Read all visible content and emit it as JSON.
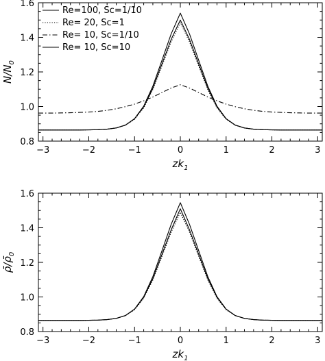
{
  "chart_data": [
    {
      "type": "line",
      "xlabel": "zk",
      "xlabel_sub": "1",
      "ylabel": "N/N",
      "ylabel_sub": "0",
      "xlim": [
        -3.1,
        3.1
      ],
      "ylim": [
        0.8,
        1.6
      ],
      "xticks": [
        -3,
        -2,
        -1,
        0,
        1,
        2,
        3
      ],
      "xtick_labels": [
        "−3",
        "−2",
        "−1",
        "0",
        "1",
        "2",
        "3"
      ],
      "yticks": [
        0.8,
        1.0,
        1.2,
        1.4,
        1.6
      ],
      "ytick_labels": [
        "0.8",
        "1.0",
        "1.2",
        "1.4",
        "1.6"
      ],
      "legend_position": "top-left",
      "x": [
        -3.1,
        -3,
        -2.8,
        -2.6,
        -2.4,
        -2.2,
        -2,
        -1.8,
        -1.6,
        -1.4,
        -1.2,
        -1,
        -0.8,
        -0.6,
        -0.4,
        -0.2,
        0,
        0.2,
        0.4,
        0.6,
        0.8,
        1,
        1.2,
        1.4,
        1.6,
        1.8,
        2,
        2.2,
        2.4,
        2.6,
        2.8,
        3,
        3.1
      ],
      "series": [
        {
          "name": "Re=100, Sc=1/10",
          "dash": "solid",
          "values": [
            0.864,
            0.864,
            0.864,
            0.864,
            0.864,
            0.864,
            0.865,
            0.866,
            0.869,
            0.876,
            0.893,
            0.93,
            1.002,
            1.118,
            1.268,
            1.42,
            1.54,
            1.42,
            1.268,
            1.118,
            1.002,
            0.93,
            0.893,
            0.876,
            0.869,
            0.866,
            0.865,
            0.864,
            0.864,
            0.864,
            0.864,
            0.864,
            0.864
          ]
        },
        {
          "name": "Re= 20, Sc=1",
          "dash": "dotted",
          "values": [
            0.864,
            0.864,
            0.864,
            0.864,
            0.864,
            0.864,
            0.865,
            0.866,
            0.869,
            0.876,
            0.892,
            0.926,
            0.992,
            1.098,
            1.235,
            1.374,
            1.484,
            1.374,
            1.235,
            1.098,
            0.992,
            0.926,
            0.892,
            0.876,
            0.869,
            0.866,
            0.865,
            0.864,
            0.864,
            0.864,
            0.864,
            0.864,
            0.864
          ]
        },
        {
          "name": "Re= 10, Sc=1/10",
          "dash": "dashdot",
          "values": [
            0.962,
            0.962,
            0.962,
            0.963,
            0.964,
            0.966,
            0.968,
            0.972,
            0.978,
            0.987,
            0.999,
            1.014,
            1.033,
            1.055,
            1.081,
            1.107,
            1.126,
            1.107,
            1.081,
            1.055,
            1.033,
            1.014,
            0.999,
            0.987,
            0.978,
            0.972,
            0.968,
            0.966,
            0.964,
            0.963,
            0.962,
            0.962,
            0.962
          ]
        },
        {
          "name": "Re= 10, Sc=10",
          "dash": "solid",
          "values": [
            0.864,
            0.864,
            0.864,
            0.864,
            0.864,
            0.864,
            0.865,
            0.866,
            0.869,
            0.876,
            0.892,
            0.929,
            0.998,
            1.106,
            1.247,
            1.388,
            1.5,
            1.388,
            1.247,
            1.106,
            0.998,
            0.929,
            0.892,
            0.876,
            0.869,
            0.866,
            0.865,
            0.864,
            0.864,
            0.864,
            0.864,
            0.864,
            0.864
          ]
        }
      ]
    },
    {
      "type": "line",
      "xlabel": "zk",
      "xlabel_sub": "1",
      "ylabel": "ρ̄/ρ̄",
      "ylabel_sub": "0",
      "xlim": [
        -3.1,
        3.1
      ],
      "ylim": [
        0.8,
        1.6
      ],
      "xticks": [
        -3,
        -2,
        -1,
        0,
        1,
        2,
        3
      ],
      "xtick_labels": [
        "−3",
        "−2",
        "−1",
        "0",
        "1",
        "2",
        "3"
      ],
      "yticks": [
        0.8,
        1.0,
        1.2,
        1.4,
        1.6
      ],
      "ytick_labels": [
        "0.8",
        "1.0",
        "1.2",
        "1.4",
        "1.6"
      ],
      "x": [
        -3.1,
        -3,
        -2.8,
        -2.6,
        -2.4,
        -2.2,
        -2,
        -1.8,
        -1.6,
        -1.4,
        -1.2,
        -1,
        -0.8,
        -0.6,
        -0.4,
        -0.2,
        0,
        0.2,
        0.4,
        0.6,
        0.8,
        1,
        1.2,
        1.4,
        1.6,
        1.8,
        2,
        2.2,
        2.4,
        2.6,
        2.8,
        3,
        3.1
      ],
      "series": [
        {
          "dash": "solid",
          "values": [
            0.864,
            0.864,
            0.864,
            0.864,
            0.864,
            0.864,
            0.865,
            0.866,
            0.869,
            0.876,
            0.893,
            0.93,
            1.002,
            1.118,
            1.268,
            1.42,
            1.545,
            1.42,
            1.268,
            1.118,
            1.002,
            0.93,
            0.893,
            0.876,
            0.869,
            0.866,
            0.865,
            0.864,
            0.864,
            0.864,
            0.864,
            0.864,
            0.864
          ]
        },
        {
          "dash": "dotted",
          "values": [
            0.864,
            0.864,
            0.864,
            0.864,
            0.864,
            0.864,
            0.865,
            0.866,
            0.869,
            0.876,
            0.892,
            0.926,
            0.992,
            1.098,
            1.235,
            1.374,
            1.49,
            1.374,
            1.235,
            1.098,
            0.992,
            0.926,
            0.892,
            0.876,
            0.869,
            0.866,
            0.865,
            0.864,
            0.864,
            0.864,
            0.864,
            0.864,
            0.864
          ]
        },
        {
          "dash": "solid",
          "values": [
            0.864,
            0.864,
            0.864,
            0.864,
            0.864,
            0.864,
            0.865,
            0.866,
            0.869,
            0.876,
            0.892,
            0.929,
            0.998,
            1.106,
            1.247,
            1.388,
            1.51,
            1.388,
            1.247,
            1.106,
            0.998,
            0.929,
            0.892,
            0.876,
            0.869,
            0.866,
            0.865,
            0.864,
            0.864,
            0.864,
            0.864,
            0.864,
            0.864
          ]
        }
      ]
    }
  ]
}
